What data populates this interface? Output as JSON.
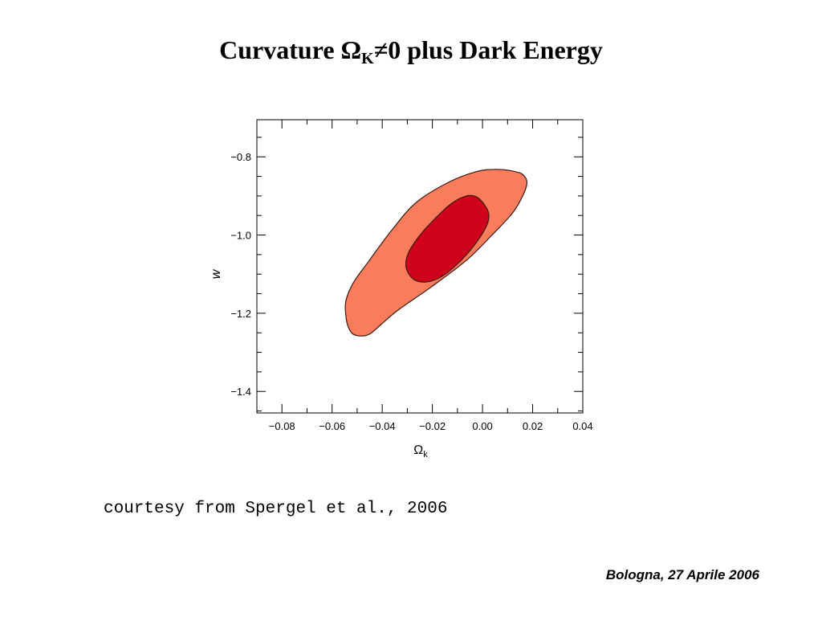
{
  "slide": {
    "title_prefix": "Curvature Ω",
    "title_subscript": "K",
    "title_suffix": "≠0 plus Dark Energy",
    "credit": "courtesy from Spergel et al., 2006",
    "footer": "Bologna, 27 Aprile 2006"
  },
  "chart_data": {
    "type": "contour",
    "xlabel_main": "Ω",
    "xlabel_sub": "k",
    "ylabel": "w",
    "xlim": [
      -0.09,
      0.04
    ],
    "ylim": [
      -1.455,
      -0.705
    ],
    "x_ticks": [
      -0.08,
      -0.06,
      -0.04,
      -0.02,
      0.0,
      0.02,
      0.04
    ],
    "x_tick_labels": [
      "−0.08",
      "−0.06",
      "−0.04",
      "−0.02",
      "0.00",
      "0.02",
      "0.04"
    ],
    "y_ticks": [
      -0.8,
      -1.0,
      -1.2,
      -1.4
    ],
    "y_tick_labels": [
      "−0.8",
      "−1.0",
      "−1.2",
      "−1.4"
    ],
    "grid": false,
    "regions": [
      {
        "level": "outer",
        "color": "#f97c5c",
        "points": [
          [
            -0.0265,
            -0.917
          ],
          [
            -0.0135,
            -0.865
          ],
          [
            -0.0025,
            -0.838
          ],
          [
            0.0055,
            -0.832
          ],
          [
            0.0125,
            -0.837
          ],
          [
            0.0165,
            -0.848
          ],
          [
            0.0175,
            -0.876
          ],
          [
            0.0125,
            -0.939
          ],
          [
            0.0035,
            -1.002
          ],
          [
            -0.0065,
            -1.065
          ],
          [
            -0.0205,
            -1.133
          ],
          [
            -0.0335,
            -1.191
          ],
          [
            -0.0405,
            -1.229
          ],
          [
            -0.0445,
            -1.251
          ],
          [
            -0.0475,
            -1.258
          ],
          [
            -0.0515,
            -1.254
          ],
          [
            -0.0535,
            -1.236
          ],
          [
            -0.0545,
            -1.207
          ],
          [
            -0.0545,
            -1.168
          ],
          [
            -0.0515,
            -1.122
          ],
          [
            -0.0455,
            -1.068
          ],
          [
            -0.0365,
            -0.99
          ]
        ]
      },
      {
        "level": "inner",
        "color": "#d0021b",
        "points": [
          [
            -0.0205,
            -0.968
          ],
          [
            -0.0125,
            -0.92
          ],
          [
            -0.0065,
            -0.9
          ],
          [
            -0.0025,
            -0.902
          ],
          [
            0.0005,
            -0.92
          ],
          [
            0.0025,
            -0.946
          ],
          [
            0.0015,
            -0.978
          ],
          [
            -0.0035,
            -1.028
          ],
          [
            -0.0105,
            -1.077
          ],
          [
            -0.0165,
            -1.107
          ],
          [
            -0.0225,
            -1.12
          ],
          [
            -0.0275,
            -1.113
          ],
          [
            -0.0305,
            -1.082
          ],
          [
            -0.0295,
            -1.045
          ],
          [
            -0.0255,
            -1.005
          ]
        ]
      }
    ]
  }
}
